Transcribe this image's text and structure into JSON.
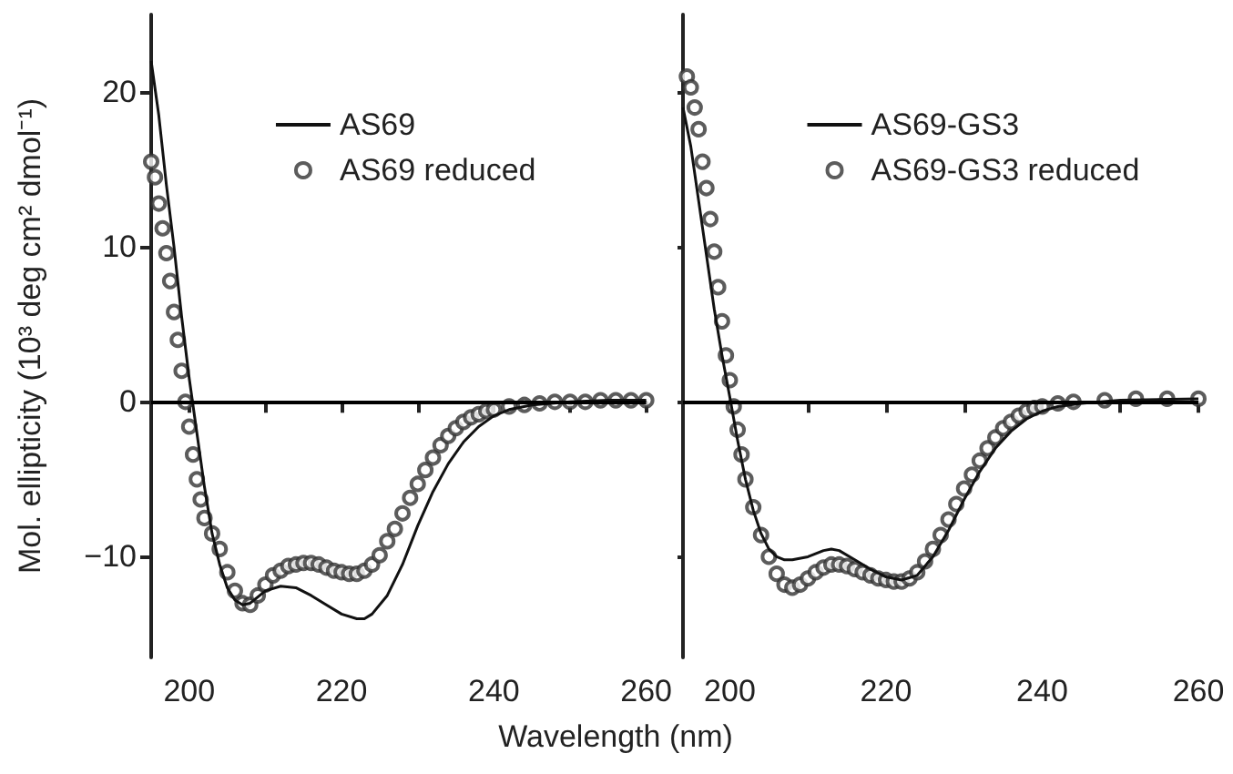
{
  "chart_data": [
    {
      "type": "line",
      "xlabel": "Wavelength (nm)",
      "ylabel": "Mol. ellipticity (10³ deg cm² dmol⁻¹)",
      "xlim": [
        195,
        260
      ],
      "ylim": [
        -16.5,
        25
      ],
      "xticks": [
        200,
        {
          "value": 210,
          "label": null
        },
        220,
        {
          "value": 230,
          "label": null
        },
        240,
        {
          "value": 250,
          "label": null
        },
        260
      ],
      "yticks": [
        -10,
        0,
        10,
        20
      ],
      "legend": "top",
      "grid": false,
      "ref_lines": [
        {
          "axis": "y",
          "value": 0,
          "color": "#000000"
        }
      ],
      "series": [
        {
          "name": "AS69",
          "marker": "none",
          "line_style": "solid",
          "color": "#111111",
          "x": [
            195,
            196,
            197,
            198,
            199,
            200,
            201,
            202,
            203,
            204,
            205,
            206,
            207,
            208,
            209,
            210,
            212,
            214,
            216,
            218,
            220,
            222,
            223,
            224,
            226,
            228,
            230,
            232,
            234,
            236,
            238,
            240,
            242,
            245,
            250,
            255,
            260
          ],
          "values": [
            22,
            18.5,
            14,
            10,
            5.5,
            1.5,
            -2,
            -5.5,
            -8.5,
            -10.5,
            -12,
            -12.8,
            -13.1,
            -13,
            -12.6,
            -12.2,
            -11.9,
            -12,
            -12.5,
            -13.1,
            -13.7,
            -14,
            -14,
            -13.7,
            -12.5,
            -10.5,
            -8,
            -5.8,
            -4,
            -2.6,
            -1.6,
            -0.9,
            -0.5,
            -0.2,
            0,
            0.1,
            0.1
          ]
        },
        {
          "name": "AS69 reduced",
          "type": "scatter",
          "marker": "circle",
          "color": "#333333",
          "x": [
            195,
            195.5,
            196,
            196.5,
            197,
            197.5,
            198,
            198.5,
            199,
            199.5,
            200,
            200.5,
            201,
            201.5,
            202,
            203,
            204,
            205,
            206,
            207,
            208,
            209,
            210,
            211,
            212,
            213,
            214,
            215,
            216,
            217,
            218,
            219,
            220,
            221,
            222,
            223,
            224,
            225,
            226,
            227,
            228,
            229,
            230,
            231,
            232,
            233,
            234,
            235,
            236,
            237,
            238,
            239,
            240,
            242,
            244,
            246,
            248,
            250,
            252,
            254,
            256,
            258,
            260
          ],
          "values": [
            15.5,
            14.5,
            12.8,
            11.2,
            9.6,
            7.8,
            5.8,
            4,
            2,
            0,
            -1.6,
            -3.4,
            -5,
            -6.3,
            -7.5,
            -8.5,
            -9.5,
            -11,
            -12.2,
            -13,
            -13.1,
            -12.5,
            -11.8,
            -11.2,
            -10.9,
            -10.6,
            -10.5,
            -10.4,
            -10.4,
            -10.5,
            -10.7,
            -10.9,
            -11,
            -11.1,
            -11.1,
            -10.9,
            -10.5,
            -9.9,
            -9,
            -8.2,
            -7.2,
            -6.2,
            -5.3,
            -4.4,
            -3.6,
            -2.8,
            -2.2,
            -1.7,
            -1.3,
            -1,
            -0.8,
            -0.6,
            -0.5,
            -0.3,
            -0.2,
            -0.1,
            0,
            0,
            0,
            0.1,
            0.1,
            0.1,
            0.1
          ]
        }
      ]
    },
    {
      "type": "line",
      "xlim": [
        194,
        260
      ],
      "ylim": [
        -16.5,
        25
      ],
      "tick_labels": "x",
      "xticks": [
        200,
        {
          "value": 210,
          "label": null
        },
        220,
        {
          "value": 230,
          "label": null
        },
        240,
        {
          "value": 250,
          "label": null
        },
        260
      ],
      "yticks": [
        -10,
        0,
        10,
        20
      ],
      "legend": "top",
      "grid": false,
      "ref_lines": [
        {
          "axis": "y",
          "value": 0,
          "color": "#000000"
        }
      ],
      "series": [
        {
          "name": "AS69-GS3",
          "marker": "none",
          "line_style": "solid",
          "color": "#111111",
          "x": [
            194,
            195,
            196,
            197,
            198,
            199,
            200,
            201,
            202,
            203,
            204,
            205,
            206,
            207,
            208,
            210,
            212,
            213,
            214,
            216,
            218,
            220,
            222,
            224,
            226,
            228,
            230,
            232,
            234,
            236,
            238,
            240,
            242,
            245,
            250,
            260
          ],
          "values": [
            19,
            16.5,
            13,
            9.5,
            6,
            3,
            0.3,
            -2.5,
            -5,
            -7,
            -8.5,
            -9.5,
            -10,
            -10.2,
            -10.2,
            -10,
            -9.6,
            -9.5,
            -9.6,
            -10.2,
            -10.8,
            -11.3,
            -11.5,
            -11.2,
            -10,
            -8.3,
            -6.3,
            -4.5,
            -3,
            -1.9,
            -1.1,
            -0.6,
            -0.3,
            -0.1,
            0.1,
            0.2
          ]
        },
        {
          "name": "AS69-GS3 reduced",
          "type": "scatter",
          "marker": "circle",
          "color": "#333333",
          "x": [
            194.5,
            195,
            195.5,
            196,
            196.5,
            197,
            197.5,
            198,
            198.5,
            199,
            199.5,
            200,
            200.5,
            201,
            201.5,
            202,
            203,
            204,
            205,
            206,
            207,
            208,
            209,
            210,
            211,
            212,
            213,
            214,
            215,
            216,
            217,
            218,
            219,
            220,
            221,
            222,
            223,
            224,
            225,
            226,
            227,
            228,
            229,
            230,
            231,
            232,
            233,
            234,
            235,
            236,
            237,
            238,
            239,
            240,
            242,
            244,
            248,
            252,
            256,
            260
          ],
          "values": [
            21,
            20.3,
            19,
            17.6,
            15.5,
            13.8,
            11.8,
            9.7,
            7.4,
            5.2,
            3,
            1.4,
            -0.3,
            -1.8,
            -3.4,
            -5,
            -6.8,
            -8.6,
            -10,
            -11.1,
            -11.8,
            -12,
            -11.8,
            -11.4,
            -11,
            -10.7,
            -10.5,
            -10.5,
            -10.6,
            -10.8,
            -11,
            -11.2,
            -11.4,
            -11.5,
            -11.6,
            -11.6,
            -11.4,
            -11,
            -10.3,
            -9.5,
            -8.6,
            -7.6,
            -6.6,
            -5.6,
            -4.7,
            -3.8,
            -3,
            -2.3,
            -1.7,
            -1.3,
            -0.9,
            -0.6,
            -0.4,
            -0.3,
            -0.1,
            0,
            0.1,
            0.2,
            0.2,
            0.2
          ]
        }
      ]
    }
  ]
}
